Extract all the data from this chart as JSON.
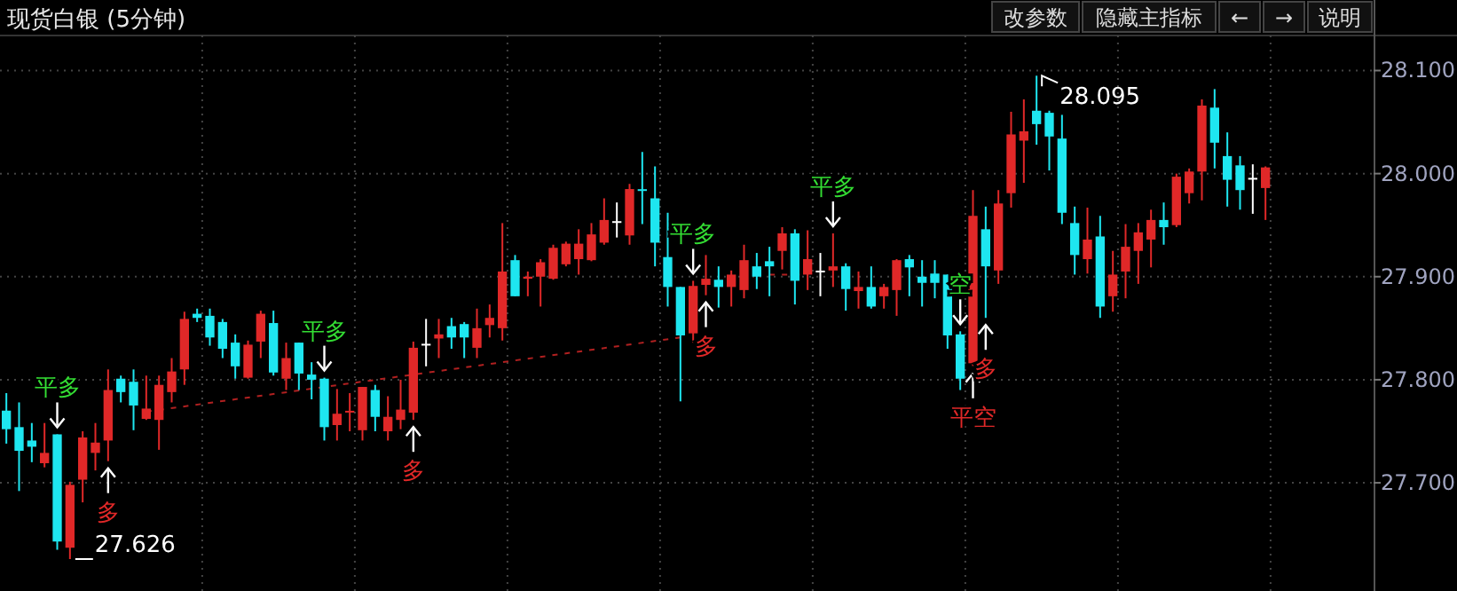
{
  "chart_data": {
    "type": "candlestick",
    "title": "现货白银 (5分钟)",
    "categories": [
      null,
      null,
      null,
      null,
      null,
      null,
      null,
      null,
      null,
      null,
      null,
      null,
      null,
      null,
      null,
      null,
      null,
      null,
      null,
      null,
      null,
      null,
      null,
      null,
      null,
      null,
      null,
      null,
      null,
      null,
      null,
      null,
      null,
      null,
      null,
      null,
      null,
      null,
      null,
      null,
      null,
      null,
      null,
      null,
      null,
      null,
      null,
      null,
      null,
      null,
      null,
      null,
      null,
      null,
      null,
      null,
      null,
      null,
      null,
      null,
      null,
      null,
      null,
      null,
      null,
      null,
      null,
      null,
      null,
      null,
      null,
      null,
      null,
      null,
      null,
      null,
      null,
      null,
      null,
      null,
      null,
      null,
      null,
      null,
      null,
      null,
      null,
      null,
      null,
      null,
      null,
      null,
      null,
      null,
      null,
      null,
      null,
      null,
      null,
      null
    ],
    "ylim": [
      27.595,
      28.134
    ],
    "yticks": [
      {
        "value": 28.1,
        "label": "28.100"
      },
      {
        "value": 28.0,
        "label": "28.000"
      },
      {
        "value": 27.9,
        "label": "27.900"
      },
      {
        "value": 27.8,
        "label": "27.800"
      },
      {
        "value": 27.7,
        "label": "27.700"
      }
    ],
    "tick_labels": "y",
    "grid": true,
    "ohlc": [
      [
        27.77,
        27.787,
        27.738,
        27.752
      ],
      [
        27.754,
        27.778,
        27.692,
        27.731
      ],
      [
        27.741,
        27.758,
        27.72,
        27.735
      ],
      [
        27.719,
        27.758,
        27.715,
        27.729
      ],
      [
        27.747,
        27.747,
        27.635,
        27.643
      ],
      [
        27.637,
        27.701,
        27.626,
        27.698
      ],
      [
        27.703,
        27.75,
        27.681,
        27.744
      ],
      [
        27.729,
        27.758,
        27.712,
        27.739
      ],
      [
        27.741,
        27.81,
        27.721,
        27.79
      ],
      [
        27.801,
        27.804,
        27.778,
        27.788
      ],
      [
        27.798,
        27.81,
        27.751,
        27.775
      ],
      [
        27.762,
        27.804,
        27.761,
        27.772
      ],
      [
        27.761,
        27.804,
        27.732,
        27.795
      ],
      [
        27.788,
        27.821,
        27.778,
        27.808
      ],
      [
        27.81,
        27.866,
        27.795,
        27.859
      ],
      [
        27.864,
        27.869,
        27.856,
        27.86
      ],
      [
        27.862,
        27.869,
        27.833,
        27.841
      ],
      [
        27.856,
        27.859,
        27.821,
        27.83
      ],
      [
        27.836,
        27.844,
        27.801,
        27.813
      ],
      [
        27.802,
        27.838,
        27.801,
        27.834
      ],
      [
        27.837,
        27.867,
        27.821,
        27.864
      ],
      [
        27.855,
        27.867,
        27.804,
        27.807
      ],
      [
        27.801,
        27.836,
        27.79,
        27.821
      ],
      [
        27.836,
        27.836,
        27.79,
        27.806
      ],
      [
        27.805,
        27.817,
        27.781,
        27.8
      ],
      [
        27.801,
        27.802,
        27.741,
        27.754
      ],
      [
        27.756,
        27.791,
        27.741,
        27.767
      ],
      [
        27.769,
        27.787,
        27.75,
        27.769
      ],
      [
        27.751,
        27.793,
        27.741,
        27.793
      ],
      [
        27.79,
        27.795,
        27.75,
        27.764
      ],
      [
        27.75,
        27.784,
        27.741,
        27.764
      ],
      [
        27.761,
        27.8,
        27.752,
        27.771
      ],
      [
        27.768,
        27.837,
        27.761,
        27.831
      ],
      [
        27.834,
        27.859,
        27.813,
        27.834
      ],
      [
        27.84,
        27.859,
        27.821,
        27.844
      ],
      [
        27.852,
        27.86,
        27.83,
        27.841
      ],
      [
        27.854,
        27.856,
        27.821,
        27.841
      ],
      [
        27.831,
        27.869,
        27.821,
        27.85
      ],
      [
        27.853,
        27.873,
        27.841,
        27.86
      ],
      [
        27.85,
        27.952,
        27.838,
        27.905
      ],
      [
        27.916,
        27.921,
        27.881,
        27.881
      ],
      [
        27.898,
        27.905,
        27.881,
        27.9
      ],
      [
        27.9,
        27.917,
        27.871,
        27.914
      ],
      [
        27.898,
        27.931,
        27.897,
        27.928
      ],
      [
        27.912,
        27.934,
        27.91,
        27.932
      ],
      [
        27.917,
        27.946,
        27.902,
        27.932
      ],
      [
        27.916,
        27.952,
        27.915,
        27.941
      ],
      [
        27.933,
        27.976,
        27.931,
        27.955
      ],
      [
        27.953,
        27.972,
        27.938,
        27.953
      ],
      [
        27.94,
        27.99,
        27.931,
        27.985
      ],
      [
        27.984,
        28.021,
        27.951,
        27.984
      ],
      [
        27.976,
        28.007,
        27.91,
        27.933
      ],
      [
        27.919,
        27.962,
        27.871,
        27.89
      ],
      [
        27.89,
        27.89,
        27.779,
        27.843
      ],
      [
        27.845,
        27.896,
        27.836,
        27.891
      ],
      [
        27.892,
        27.921,
        27.882,
        27.898
      ],
      [
        27.897,
        27.91,
        27.87,
        27.89
      ],
      [
        27.89,
        27.906,
        27.871,
        27.902
      ],
      [
        27.887,
        27.931,
        27.879,
        27.916
      ],
      [
        27.91,
        27.923,
        27.888,
        27.9
      ],
      [
        27.915,
        27.929,
        27.881,
        27.91
      ],
      [
        27.925,
        27.948,
        27.907,
        27.942
      ],
      [
        27.942,
        27.946,
        27.873,
        27.896
      ],
      [
        27.902,
        27.945,
        27.887,
        27.917
      ],
      [
        27.905,
        27.923,
        27.881,
        27.905
      ],
      [
        27.906,
        27.942,
        27.89,
        27.91
      ],
      [
        27.91,
        27.913,
        27.867,
        27.888
      ],
      [
        27.886,
        27.905,
        27.869,
        27.89
      ],
      [
        27.89,
        27.91,
        27.869,
        27.871
      ],
      [
        27.881,
        27.893,
        27.869,
        27.89
      ],
      [
        27.887,
        27.917,
        27.862,
        27.916
      ],
      [
        27.917,
        27.921,
        27.881,
        27.909
      ],
      [
        27.9,
        27.916,
        27.871,
        27.894
      ],
      [
        27.903,
        27.916,
        27.879,
        27.894
      ],
      [
        27.902,
        27.902,
        27.83,
        27.843
      ],
      [
        27.844,
        27.847,
        27.79,
        27.801
      ],
      [
        27.816,
        27.984,
        27.813,
        27.959
      ],
      [
        27.946,
        27.968,
        27.86,
        27.91
      ],
      [
        27.906,
        27.984,
        27.893,
        27.971
      ],
      [
        27.981,
        28.06,
        27.967,
        28.038
      ],
      [
        28.032,
        28.072,
        27.991,
        28.041
      ],
      [
        28.061,
        28.095,
        28.028,
        28.048
      ],
      [
        28.059,
        28.061,
        28.003,
        28.036
      ],
      [
        28.034,
        28.057,
        27.951,
        27.962
      ],
      [
        27.952,
        27.968,
        27.902,
        27.921
      ],
      [
        27.917,
        27.967,
        27.903,
        27.936
      ],
      [
        27.939,
        27.959,
        27.86,
        27.871
      ],
      [
        27.881,
        27.925,
        27.866,
        27.902
      ],
      [
        27.905,
        27.951,
        27.879,
        27.929
      ],
      [
        27.925,
        27.952,
        27.893,
        27.943
      ],
      [
        27.936,
        27.965,
        27.909,
        27.955
      ],
      [
        27.955,
        27.972,
        27.931,
        27.948
      ],
      [
        27.95,
        28.0,
        27.948,
        27.997
      ],
      [
        27.981,
        28.005,
        27.971,
        28.002
      ],
      [
        28.002,
        28.072,
        27.974,
        28.066
      ],
      [
        28.064,
        28.082,
        28.005,
        28.03
      ],
      [
        28.017,
        28.04,
        27.968,
        27.994
      ],
      [
        28.008,
        28.017,
        27.965,
        27.984
      ],
      [
        27.995,
        28.009,
        27.961,
        27.995
      ],
      [
        27.986,
        28.007,
        27.955,
        28.006
      ]
    ],
    "colors": [
      "#1ee6f0",
      "#1ee6f0",
      "#1ee6f0",
      "#e02828",
      "#1ee6f0",
      "#e02828",
      "#e02828",
      "#e02828",
      "#e02828",
      "#1ee6f0",
      "#1ee6f0",
      "#e02828",
      "#e02828",
      "#e02828",
      "#e02828",
      "#1ee6f0",
      "#1ee6f0",
      "#1ee6f0",
      "#1ee6f0",
      "#e02828",
      "#e02828",
      "#1ee6f0",
      "#e02828",
      "#1ee6f0",
      "#1ee6f0",
      "#1ee6f0",
      "#e02828",
      "#e02828",
      "#e02828",
      "#1ee6f0",
      "#e02828",
      "#e02828",
      "#e02828",
      "#ffffff",
      "#e02828",
      "#1ee6f0",
      "#1ee6f0",
      "#e02828",
      "#e02828",
      "#e02828",
      "#1ee6f0",
      "#e02828",
      "#e02828",
      "#e02828",
      "#e02828",
      "#e02828",
      "#e02828",
      "#e02828",
      "#ffffff",
      "#e02828",
      "#1ee6f0",
      "#1ee6f0",
      "#1ee6f0",
      "#1ee6f0",
      "#e02828",
      "#e02828",
      "#1ee6f0",
      "#e02828",
      "#e02828",
      "#1ee6f0",
      "#1ee6f0",
      "#e02828",
      "#1ee6f0",
      "#e02828",
      "#ffffff",
      "#e02828",
      "#1ee6f0",
      "#e02828",
      "#1ee6f0",
      "#e02828",
      "#e02828",
      "#1ee6f0",
      "#1ee6f0",
      "#1ee6f0",
      "#1ee6f0",
      "#1ee6f0",
      "#e02828",
      "#1ee6f0",
      "#e02828",
      "#e02828",
      "#e02828",
      "#1ee6f0",
      "#1ee6f0",
      "#1ee6f0",
      "#1ee6f0",
      "#e02828",
      "#1ee6f0",
      "#e02828",
      "#e02828",
      "#e02828",
      "#e02828",
      "#1ee6f0",
      "#e02828",
      "#e02828",
      "#e02828",
      "#1ee6f0",
      "#1ee6f0",
      "#1ee6f0",
      "#ffffff",
      "#e02828"
    ],
    "series": [
      {
        "type": "line",
        "values": [
          null,
          null,
          null,
          null,
          null,
          null,
          null,
          null,
          null,
          null,
          null,
          27.769,
          null,
          null,
          null,
          null,
          null,
          null,
          null,
          null,
          null,
          null,
          null,
          null,
          null,
          null,
          null,
          null,
          null,
          null,
          null,
          null,
          null,
          null,
          null,
          null,
          null,
          null,
          null,
          null,
          null,
          null,
          null,
          null,
          null,
          null,
          null,
          null,
          null,
          null,
          null,
          null,
          null,
          27.841,
          null,
          null,
          null,
          null,
          null,
          null,
          null,
          null,
          null,
          null,
          null,
          null,
          null,
          null,
          null,
          null,
          null,
          null,
          null,
          null,
          null,
          null,
          null,
          null,
          null,
          null,
          null,
          null,
          null,
          null,
          null,
          null,
          null,
          null,
          null,
          null,
          null,
          null,
          null,
          null,
          null,
          null,
          null,
          null,
          null,
          null
        ],
        "color": "#b02020",
        "line_style": "dashed"
      },
      {
        "type": "line",
        "values": [
          null,
          null,
          null,
          null,
          null,
          null,
          null,
          null,
          null,
          null,
          null,
          null,
          null,
          null,
          null,
          null,
          null,
          null,
          null,
          null,
          null,
          null,
          null,
          null,
          null,
          null,
          null,
          null,
          null,
          null,
          null,
          null,
          null,
          null,
          null,
          null,
          null,
          null,
          null,
          null,
          null,
          null,
          null,
          null,
          null,
          null,
          null,
          null,
          null,
          null,
          null,
          null,
          null,
          null,
          null,
          null,
          null,
          null,
          null,
          null,
          27.902,
          null,
          null,
          27.902,
          null,
          null,
          null,
          null,
          null,
          null,
          null,
          null,
          null,
          null,
          null,
          null,
          null,
          null,
          null,
          null,
          null,
          null,
          null,
          null,
          null,
          null,
          null,
          null,
          null,
          null,
          null,
          null,
          null,
          null,
          null,
          null,
          null,
          null,
          null,
          null
        ],
        "color": "#b02020",
        "line_style": "dashed"
      }
    ],
    "annotations": [
      {
        "text": "平多",
        "y": 27.747
      },
      {
        "text": "多",
        "y": 27.721
      },
      {
        "text": "平多",
        "y": 27.802
      },
      {
        "text": "多",
        "y": 27.761
      },
      {
        "text": "平多",
        "y": 27.896
      },
      {
        "text": "多",
        "y": 27.882
      },
      {
        "text": "平多",
        "y": 27.942
      },
      {
        "text": "空",
        "y": 27.847
      },
      {
        "text": "平空",
        "y": 27.813
      },
      {
        "text": "多",
        "y": 27.86
      },
      "27.626",
      "28.095",
      "改参数",
      "隐藏主指标",
      "←",
      "→",
      "说明"
    ]
  }
}
